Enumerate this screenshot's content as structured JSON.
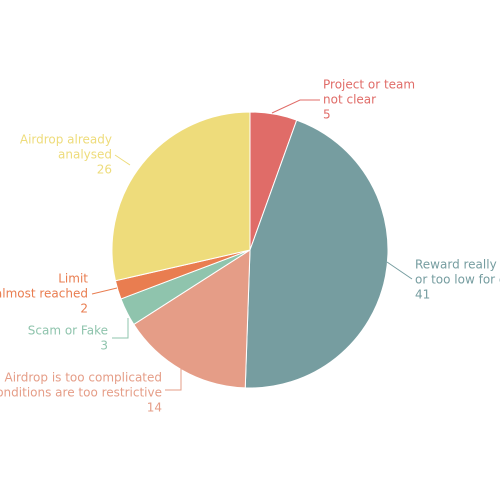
{
  "chart_data": {
    "type": "pie",
    "categories": [
      [
        "Project or team",
        "not clear"
      ],
      [
        "Reward really",
        "or too low for c"
      ],
      [
        "Airdrop is too complicated",
        "onditions are too restrictive"
      ],
      [
        "Scam or Fake"
      ],
      [
        "Limit",
        "almost reached"
      ],
      [
        "Airdrop already",
        "analysed"
      ]
    ],
    "values": [
      5,
      41,
      14,
      3,
      2,
      26
    ],
    "colors": [
      "#e06c68",
      "#769da0",
      "#e59d87",
      "#8fc4ad",
      "#e97d50",
      "#eedc7b"
    ]
  }
}
